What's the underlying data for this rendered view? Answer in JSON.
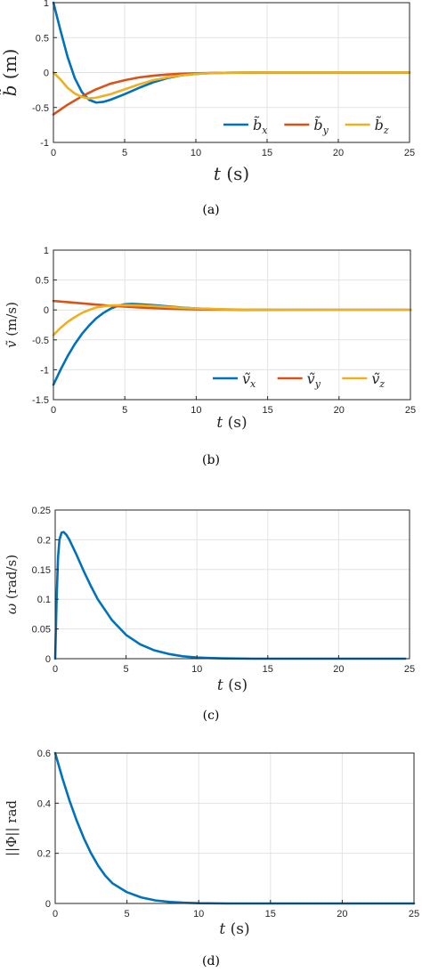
{
  "colors": {
    "x": "#0072BD",
    "y": "#D95319",
    "z": "#EDB120"
  },
  "chart_data": [
    {
      "type": "line",
      "caption": "(a)",
      "xlabel_var": "t",
      "xlabel_unit": "(s)",
      "ylabel_var": "b̃",
      "ylabel_unit": "(m)",
      "xlim": [
        0,
        25
      ],
      "ylim": [
        -1,
        1
      ],
      "xticks": [
        0,
        5,
        10,
        15,
        20,
        25
      ],
      "yticks": [
        -1,
        -0.5,
        0,
        0.5,
        1
      ],
      "xtick_labels": [
        "0",
        "5",
        "10",
        "15",
        "20",
        "25"
      ],
      "ytick_labels": [
        "-1",
        "-0.5",
        "0",
        "0.5",
        "1"
      ],
      "grid": true,
      "legend_position": "bottom-right",
      "legend_orientation": "horizontal",
      "series": [
        {
          "name": "b̃",
          "sub": "x",
          "color_key": "x",
          "x": [
            0,
            0.5,
            1,
            1.5,
            2,
            2.5,
            3,
            3.5,
            4,
            5,
            6,
            7,
            8,
            9,
            10,
            11,
            12,
            14,
            16,
            20,
            25
          ],
          "y": [
            1.0,
            0.6,
            0.22,
            -0.08,
            -0.28,
            -0.39,
            -0.43,
            -0.42,
            -0.39,
            -0.31,
            -0.22,
            -0.14,
            -0.08,
            -0.04,
            -0.02,
            -0.008,
            -0.003,
            0,
            0,
            0,
            0
          ]
        },
        {
          "name": "b̃",
          "sub": "y",
          "color_key": "y",
          "x": [
            0,
            1,
            2,
            3,
            4,
            5,
            6,
            7,
            8,
            9,
            10,
            12,
            14,
            16,
            20,
            25
          ],
          "y": [
            -0.6,
            -0.46,
            -0.34,
            -0.24,
            -0.16,
            -0.11,
            -0.07,
            -0.045,
            -0.028,
            -0.017,
            -0.01,
            -0.004,
            -0.001,
            0,
            0,
            0
          ]
        },
        {
          "name": "b̃",
          "sub": "z",
          "color_key": "z",
          "x": [
            0,
            0.5,
            1,
            1.5,
            2,
            2.5,
            3,
            4,
            5,
            6,
            7,
            8,
            9,
            10,
            11,
            12,
            14,
            16,
            20,
            25
          ],
          "y": [
            0,
            -0.1,
            -0.22,
            -0.3,
            -0.35,
            -0.37,
            -0.36,
            -0.31,
            -0.24,
            -0.17,
            -0.11,
            -0.07,
            -0.04,
            -0.02,
            -0.01,
            -0.004,
            0,
            0,
            0,
            0
          ]
        }
      ]
    },
    {
      "type": "line",
      "caption": "(b)",
      "xlabel_var": "t",
      "xlabel_unit": "(s)",
      "ylabel_var": "ṽ",
      "ylabel_unit": "(m/s)",
      "xlim": [
        0,
        25
      ],
      "ylim": [
        -1.5,
        1
      ],
      "xticks": [
        0,
        5,
        10,
        15,
        20,
        25
      ],
      "yticks": [
        -1.5,
        -1,
        -0.5,
        0,
        0.5,
        1
      ],
      "xtick_labels": [
        "0",
        "5",
        "10",
        "15",
        "20",
        "25"
      ],
      "ytick_labels": [
        "-1.5",
        "-1",
        "-0.5",
        "0",
        "0.5",
        "1"
      ],
      "grid": true,
      "legend_position": "bottom-right",
      "legend_orientation": "horizontal",
      "series": [
        {
          "name": "ṽ",
          "sub": "x",
          "color_key": "x",
          "x": [
            0,
            0.5,
            1,
            1.5,
            2,
            2.5,
            3,
            3.5,
            4,
            4.5,
            5,
            5.5,
            6,
            7,
            8,
            9,
            10,
            11,
            12,
            14,
            16,
            20,
            25
          ],
          "y": [
            -1.25,
            -1.0,
            -0.77,
            -0.57,
            -0.4,
            -0.26,
            -0.14,
            -0.05,
            0.02,
            0.07,
            0.095,
            0.1,
            0.095,
            0.08,
            0.06,
            0.04,
            0.025,
            0.015,
            0.008,
            0.002,
            0,
            0,
            0
          ]
        },
        {
          "name": "ṽ",
          "sub": "y",
          "color_key": "y",
          "x": [
            0,
            1,
            2,
            3,
            4,
            5,
            6,
            7,
            8,
            10,
            12,
            14,
            16,
            20,
            25
          ],
          "y": [
            0.15,
            0.13,
            0.11,
            0.09,
            0.07,
            0.055,
            0.04,
            0.03,
            0.02,
            0.01,
            0.004,
            0.001,
            0,
            0,
            0
          ]
        },
        {
          "name": "ṽ",
          "sub": "z",
          "color_key": "z",
          "x": [
            0,
            0.5,
            1,
            1.5,
            2,
            2.5,
            3,
            3.5,
            4,
            5,
            6,
            7,
            8,
            9,
            10,
            12,
            14,
            16,
            20,
            25
          ],
          "y": [
            -0.42,
            -0.3,
            -0.2,
            -0.12,
            -0.05,
            0.0,
            0.04,
            0.06,
            0.075,
            0.08,
            0.075,
            0.065,
            0.05,
            0.035,
            0.025,
            0.01,
            0.004,
            0.001,
            0,
            0
          ]
        }
      ]
    },
    {
      "type": "line",
      "caption": "(c)",
      "xlabel_var": "t",
      "xlabel_unit": "(s)",
      "ylabel_var": "ω",
      "ylabel_unit": "(rad/s)",
      "xlim": [
        0,
        25
      ],
      "ylim": [
        0,
        0.25
      ],
      "xticks": [
        0,
        5,
        10,
        15,
        20,
        25
      ],
      "yticks": [
        0,
        0.05,
        0.1,
        0.15,
        0.2,
        0.25
      ],
      "xtick_labels": [
        "0",
        "5",
        "10",
        "15",
        "20",
        "25"
      ],
      "ytick_labels": [
        "0",
        "0.05",
        "0.1",
        "0.15",
        "0.2",
        "0.25"
      ],
      "grid": true,
      "series": [
        {
          "name": "",
          "color_key": "x",
          "x": [
            0,
            0.1,
            0.2,
            0.3,
            0.45,
            0.6,
            0.8,
            1,
            1.5,
            2,
            2.5,
            3,
            4,
            5,
            6,
            7,
            8,
            9,
            10,
            11,
            12,
            14,
            16,
            20,
            24.7
          ],
          "y": [
            0,
            0.1,
            0.17,
            0.2,
            0.212,
            0.213,
            0.208,
            0.2,
            0.175,
            0.148,
            0.123,
            0.1,
            0.065,
            0.04,
            0.024,
            0.014,
            0.008,
            0.004,
            0.002,
            0.001,
            0.0005,
            0,
            0,
            0,
            0
          ]
        }
      ]
    },
    {
      "type": "line",
      "caption": "(d)",
      "xlabel_var": "t",
      "xlabel_unit": "(s)",
      "ylabel_text": "||Φ|| rad",
      "xlim": [
        0,
        25
      ],
      "ylim": [
        0,
        0.6
      ],
      "xticks": [
        0,
        5,
        10,
        15,
        20,
        25
      ],
      "yticks": [
        0,
        0.2,
        0.4,
        0.6
      ],
      "xtick_labels": [
        "0",
        "5",
        "10",
        "15",
        "20",
        "25"
      ],
      "ytick_labels": [
        "0",
        "0.2",
        "0.4",
        "0.6"
      ],
      "grid": true,
      "series": [
        {
          "name": "",
          "color_key": "x",
          "x": [
            0,
            0.5,
            1,
            1.5,
            2,
            2.5,
            3,
            3.5,
            4,
            5,
            6,
            7,
            8,
            9,
            10,
            12,
            14,
            16,
            20,
            25
          ],
          "y": [
            0.6,
            0.5,
            0.41,
            0.33,
            0.26,
            0.2,
            0.15,
            0.11,
            0.08,
            0.045,
            0.024,
            0.012,
            0.006,
            0.003,
            0.001,
            0,
            0,
            0,
            0,
            0
          ]
        }
      ]
    }
  ]
}
